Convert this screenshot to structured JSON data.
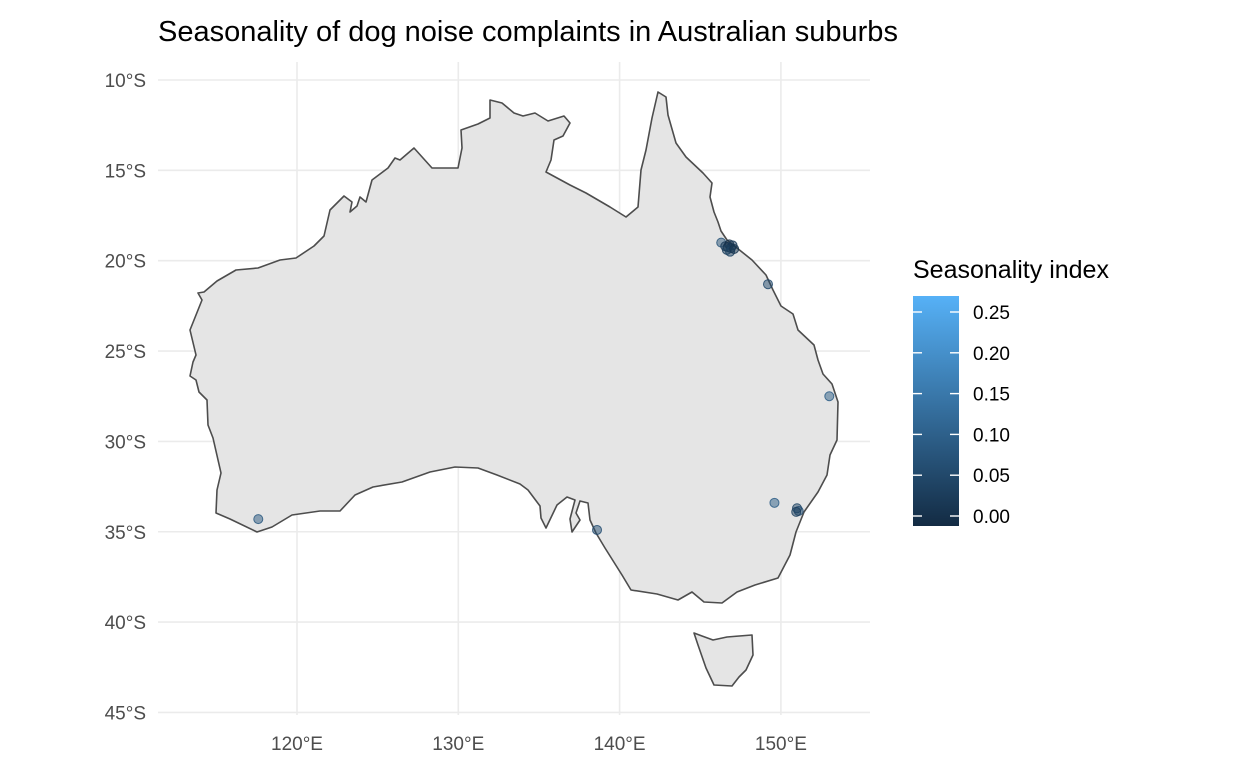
{
  "chart_data": {
    "type": "scatter",
    "title": "Seasonality of dog noise complaints in Australian suburbs",
    "xlabel": "",
    "ylabel": "",
    "xlim": [
      111.5,
      155.5
    ],
    "ylim": [
      -45.0,
      -9.4
    ],
    "x_ticks": [
      {
        "value": 120,
        "label": "120°E"
      },
      {
        "value": 130,
        "label": "130°E"
      },
      {
        "value": 140,
        "label": "140°E"
      },
      {
        "value": 150,
        "label": "150°E"
      }
    ],
    "y_ticks": [
      {
        "value": -10,
        "label": "10°S"
      },
      {
        "value": -15,
        "label": "15°S"
      },
      {
        "value": -20,
        "label": "20°S"
      },
      {
        "value": -25,
        "label": "25°S"
      },
      {
        "value": -30,
        "label": "30°S"
      },
      {
        "value": -35,
        "label": "35°S"
      },
      {
        "value": -40,
        "label": "40°S"
      },
      {
        "value": -45,
        "label": "45°S"
      }
    ],
    "grid": true,
    "legend": {
      "title": "Seasonality index",
      "position": "right",
      "range": [
        0.0,
        0.27
      ],
      "color_low": "#132b43",
      "color_high": "#56b1f7",
      "breaks": [
        {
          "value": 0.0,
          "label": "0.00"
        },
        {
          "value": 0.05,
          "label": "0.05"
        },
        {
          "value": 0.1,
          "label": "0.10"
        },
        {
          "value": 0.15,
          "label": "0.15"
        },
        {
          "value": 0.2,
          "label": "0.20"
        },
        {
          "value": 0.25,
          "label": "0.25"
        }
      ]
    },
    "colors": {
      "land_fill": "#e5e5e5",
      "land_outline": "#4d4d4d",
      "grid": "#ebebeb",
      "background": "#ffffff"
    },
    "points": [
      {
        "lon": 117.6,
        "lat": -34.3,
        "value": 0.09
      },
      {
        "lon": 138.6,
        "lat": -34.9,
        "value": 0.07
      },
      {
        "lon": 146.3,
        "lat": -19.0,
        "value": 0.08
      },
      {
        "lon": 146.55,
        "lat": -19.2,
        "value": 0.03
      },
      {
        "lon": 146.7,
        "lat": -19.25,
        "value": 0.02
      },
      {
        "lon": 146.8,
        "lat": -19.1,
        "value": 0.01
      },
      {
        "lon": 146.9,
        "lat": -19.3,
        "value": 0.02
      },
      {
        "lon": 147.0,
        "lat": -19.15,
        "value": 0.03
      },
      {
        "lon": 146.65,
        "lat": -19.4,
        "value": 0.04
      },
      {
        "lon": 146.85,
        "lat": -19.5,
        "value": 0.05
      },
      {
        "lon": 147.1,
        "lat": -19.35,
        "value": 0.02
      },
      {
        "lon": 149.2,
        "lat": -21.3,
        "value": 0.06
      },
      {
        "lon": 153.0,
        "lat": -27.5,
        "value": 0.1
      },
      {
        "lon": 149.6,
        "lat": -33.4,
        "value": 0.1
      },
      {
        "lon": 151.0,
        "lat": -33.7,
        "value": 0.05
      },
      {
        "lon": 151.1,
        "lat": -33.85,
        "value": 0.07
      },
      {
        "lon": 150.95,
        "lat": -33.9,
        "value": 0.04
      }
    ]
  }
}
